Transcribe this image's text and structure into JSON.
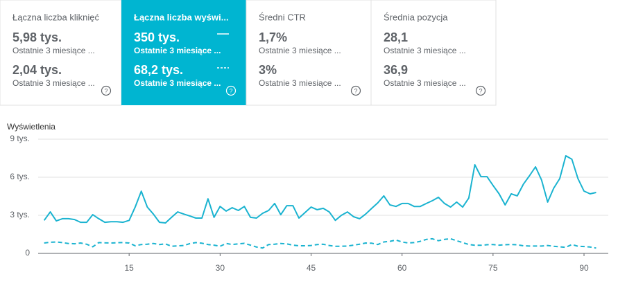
{
  "cards": [
    {
      "title": "Łączna liczba kliknięć",
      "rows": [
        {
          "value": "5,98 tys.",
          "label": "Ostatnie 3 miesiące ..."
        },
        {
          "value": "2,04 tys.",
          "label": "Ostatnie 3 miesiące ..."
        }
      ]
    },
    {
      "title": "Łączna liczba wyświ...",
      "rows": [
        {
          "value": "350 tys.",
          "label": "Ostatnie 3 miesiące ..."
        },
        {
          "value": "68,2 tys.",
          "label": "Ostatnie 3 miesiące ..."
        }
      ]
    },
    {
      "title": "Średni CTR",
      "rows": [
        {
          "value": "1,7%",
          "label": "Ostatnie 3 miesiące ..."
        },
        {
          "value": "3%",
          "label": "Ostatnie 3 miesiące ..."
        }
      ]
    },
    {
      "title": "Średnia pozycja",
      "rows": [
        {
          "value": "28,1",
          "label": "Ostatnie 3 miesiące ..."
        },
        {
          "value": "36,9",
          "label": "Ostatnie 3 miesiące ..."
        }
      ]
    }
  ],
  "chart_data": {
    "type": "line",
    "y_label": "Wyświetlenia",
    "x": [
      1,
      2,
      3,
      4,
      5,
      6,
      7,
      8,
      9,
      10,
      11,
      12,
      13,
      14,
      15,
      16,
      17,
      18,
      19,
      20,
      21,
      22,
      23,
      24,
      25,
      26,
      27,
      28,
      29,
      30,
      31,
      32,
      33,
      34,
      35,
      36,
      37,
      38,
      39,
      40,
      41,
      42,
      43,
      44,
      45,
      46,
      47,
      48,
      49,
      50,
      51,
      52,
      53,
      54,
      55,
      56,
      57,
      58,
      59,
      60,
      61,
      62,
      63,
      64,
      65,
      66,
      67,
      68,
      69,
      70,
      71,
      72,
      73,
      74,
      75,
      76,
      77,
      78,
      79,
      80,
      81,
      82,
      83,
      84,
      85,
      86,
      87,
      88,
      89,
      90,
      91,
      92
    ],
    "series": [
      {
        "color": "#1ab3d0",
        "dash": false,
        "values": [
          2600,
          3270,
          2560,
          2730,
          2730,
          2670,
          2450,
          2450,
          3050,
          2730,
          2450,
          2500,
          2500,
          2450,
          2600,
          3650,
          4900,
          3650,
          3100,
          2450,
          2400,
          2840,
          3270,
          3100,
          2950,
          2780,
          2780,
          4300,
          2840,
          3700,
          3330,
          3600,
          3380,
          3700,
          2840,
          2780,
          3160,
          3380,
          3930,
          3050,
          3760,
          3760,
          2780,
          3220,
          3650,
          3440,
          3550,
          3270,
          2600,
          3000,
          3270,
          2890,
          2730,
          3100,
          3550,
          3980,
          4530,
          3820,
          3700,
          3930,
          3930,
          3700,
          3700,
          3930,
          4150,
          4420,
          3930,
          3650,
          4040,
          3650,
          4360,
          6980,
          6050,
          6050,
          5350,
          4690,
          3820,
          4690,
          4530,
          5450,
          6110,
          6820,
          5780,
          4040,
          5130,
          5890,
          7690,
          7420,
          5890,
          4910,
          4690,
          4800
        ]
      },
      {
        "color": "#1ab3d0",
        "dash": true,
        "values": [
          820,
          880,
          900,
          850,
          780,
          760,
          820,
          720,
          520,
          850,
          830,
          820,
          840,
          850,
          820,
          600,
          700,
          720,
          780,
          700,
          750,
          560,
          590,
          620,
          770,
          850,
          800,
          700,
          650,
          560,
          780,
          700,
          750,
          790,
          650,
          500,
          420,
          700,
          720,
          780,
          750,
          650,
          600,
          600,
          620,
          700,
          720,
          620,
          560,
          560,
          580,
          650,
          720,
          820,
          800,
          700,
          900,
          950,
          1050,
          900,
          820,
          850,
          950,
          1100,
          1150,
          1000,
          1100,
          1150,
          1000,
          850,
          700,
          640,
          640,
          680,
          700,
          650,
          680,
          700,
          680,
          600,
          580,
          580,
          580,
          620,
          560,
          520,
          480,
          700,
          560,
          540,
          500,
          420
        ]
      }
    ],
    "xlim": [
      0,
      94
    ],
    "xticks": [
      15,
      30,
      45,
      60,
      75,
      90
    ],
    "ylim": [
      0,
      9000
    ],
    "yticks": [
      0,
      {
        "value": 3000,
        "label": "3 tys."
      },
      {
        "value": 6000,
        "label": "6 tys."
      },
      {
        "value": 9000,
        "label": "9 tys."
      }
    ],
    "grid": true
  }
}
